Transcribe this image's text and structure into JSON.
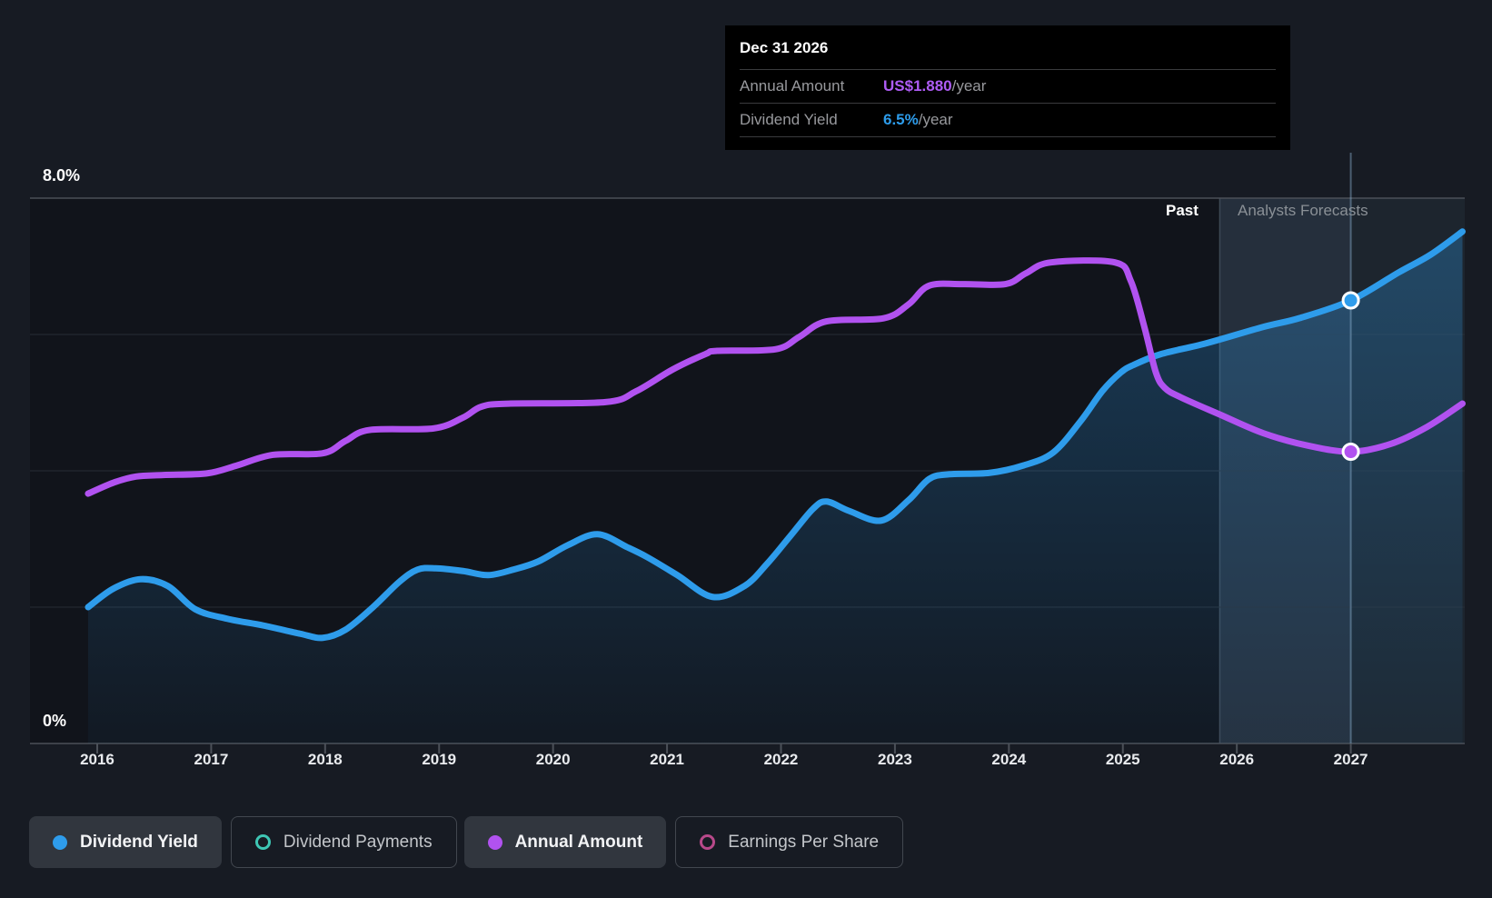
{
  "tooltip": {
    "title": "Dec 31 2026",
    "rows": [
      {
        "label": "Annual Amount",
        "value": "US$1.880",
        "suffix": "/year",
        "color": "#ae5cf5"
      },
      {
        "label": "Dividend Yield",
        "value": "6.5%",
        "suffix": "/year",
        "color": "#2d9ceb"
      }
    ]
  },
  "chart": {
    "y_axis_top_label": "8.0%",
    "y_axis_bottom_label": "0%",
    "past_label": "Past",
    "forecast_label": "Analysts Forecasts",
    "x_ticks": [
      2016,
      2017,
      2018,
      2019,
      2020,
      2021,
      2022,
      2023,
      2024,
      2025,
      2026,
      2027
    ]
  },
  "legend": [
    {
      "label": "Dividend Yield",
      "color": "#2e9ceb",
      "active": true,
      "style": "filled"
    },
    {
      "label": "Dividend Payments",
      "color": "#3ec6b4",
      "active": false,
      "style": "ring"
    },
    {
      "label": "Annual Amount",
      "color": "#b152f0",
      "active": true,
      "style": "filled"
    },
    {
      "label": "Earnings Per Share",
      "color": "#b8498a",
      "active": false,
      "style": "ring"
    }
  ],
  "colors": {
    "background": "#171b23",
    "blue": "#2e9ceb",
    "purple": "#b152f0",
    "gridline_major": "#4b5058",
    "gridline_minor": "#282d35",
    "tooltip_bg": "#000000"
  },
  "chart_data": {
    "type": "line",
    "title": "Dividend yield history and forecast",
    "x_range": [
      2015.41,
      2028.0
    ],
    "divider_year": 2025.85,
    "marker_year": 2027.0,
    "grid": true,
    "yield_axis": {
      "ylim": [
        0,
        8
      ],
      "step": 2,
      "labeled_ticks": [
        "8.0%",
        "0%"
      ]
    },
    "series": [
      {
        "name": "Dividend Yield",
        "unit": "%",
        "color": "#2e9ceb",
        "area": true,
        "ylim": [
          0,
          8
        ],
        "marker_value": 6.5,
        "points": [
          [
            2015.92,
            2.0
          ],
          [
            2016.14,
            2.27
          ],
          [
            2016.38,
            2.41
          ],
          [
            2016.62,
            2.31
          ],
          [
            2016.86,
            1.97
          ],
          [
            2017.14,
            1.83
          ],
          [
            2017.46,
            1.73
          ],
          [
            2017.78,
            1.61
          ],
          [
            2017.98,
            1.55
          ],
          [
            2018.18,
            1.67
          ],
          [
            2018.42,
            2.0
          ],
          [
            2018.65,
            2.37
          ],
          [
            2018.81,
            2.55
          ],
          [
            2018.97,
            2.57
          ],
          [
            2019.21,
            2.53
          ],
          [
            2019.43,
            2.47
          ],
          [
            2019.65,
            2.55
          ],
          [
            2019.87,
            2.67
          ],
          [
            2020.13,
            2.91
          ],
          [
            2020.39,
            3.07
          ],
          [
            2020.65,
            2.88
          ],
          [
            2020.83,
            2.73
          ],
          [
            2021.09,
            2.47
          ],
          [
            2021.4,
            2.15
          ],
          [
            2021.68,
            2.31
          ],
          [
            2021.88,
            2.64
          ],
          [
            2022.08,
            3.04
          ],
          [
            2022.28,
            3.44
          ],
          [
            2022.4,
            3.55
          ],
          [
            2022.6,
            3.41
          ],
          [
            2022.88,
            3.27
          ],
          [
            2023.12,
            3.57
          ],
          [
            2023.3,
            3.88
          ],
          [
            2023.48,
            3.95
          ],
          [
            2023.83,
            3.97
          ],
          [
            2024.13,
            4.08
          ],
          [
            2024.39,
            4.27
          ],
          [
            2024.63,
            4.73
          ],
          [
            2024.82,
            5.17
          ],
          [
            2024.98,
            5.44
          ],
          [
            2025.09,
            5.55
          ],
          [
            2025.33,
            5.71
          ],
          [
            2025.73,
            5.87
          ],
          [
            2026.23,
            6.11
          ],
          [
            2026.55,
            6.24
          ],
          [
            2027.0,
            6.5
          ],
          [
            2027.42,
            6.91
          ],
          [
            2027.7,
            7.17
          ],
          [
            2027.98,
            7.51
          ]
        ]
      },
      {
        "name": "Annual Amount",
        "unit": "US$",
        "color": "#b152f0",
        "area": false,
        "ylim": [
          0,
          3.514
        ],
        "marker_value": 1.88,
        "points": [
          [
            2015.92,
            1.61
          ],
          [
            2016.14,
            1.68
          ],
          [
            2016.34,
            1.72
          ],
          [
            2016.58,
            1.73
          ],
          [
            2016.96,
            1.74
          ],
          [
            2017.22,
            1.79
          ],
          [
            2017.54,
            1.86
          ],
          [
            2017.98,
            1.87
          ],
          [
            2018.18,
            1.95
          ],
          [
            2018.39,
            2.02
          ],
          [
            2018.95,
            2.03
          ],
          [
            2019.21,
            2.1
          ],
          [
            2019.37,
            2.17
          ],
          [
            2019.61,
            2.19
          ],
          [
            2020.46,
            2.2
          ],
          [
            2020.73,
            2.27
          ],
          [
            2021.05,
            2.41
          ],
          [
            2021.34,
            2.51
          ],
          [
            2021.44,
            2.53
          ],
          [
            2021.95,
            2.54
          ],
          [
            2022.16,
            2.62
          ],
          [
            2022.4,
            2.72
          ],
          [
            2022.9,
            2.74
          ],
          [
            2023.12,
            2.83
          ],
          [
            2023.3,
            2.95
          ],
          [
            2023.6,
            2.96
          ],
          [
            2023.97,
            2.96
          ],
          [
            2024.15,
            3.03
          ],
          [
            2024.37,
            3.1
          ],
          [
            2024.93,
            3.1
          ],
          [
            2025.07,
            2.98
          ],
          [
            2025.19,
            2.68
          ],
          [
            2025.29,
            2.39
          ],
          [
            2025.37,
            2.29
          ],
          [
            2025.51,
            2.23
          ],
          [
            2025.85,
            2.12
          ],
          [
            2026.23,
            2.0
          ],
          [
            2026.62,
            1.92
          ],
          [
            2027.0,
            1.88
          ],
          [
            2027.35,
            1.93
          ],
          [
            2027.67,
            2.04
          ],
          [
            2027.98,
            2.19
          ]
        ]
      }
    ]
  }
}
